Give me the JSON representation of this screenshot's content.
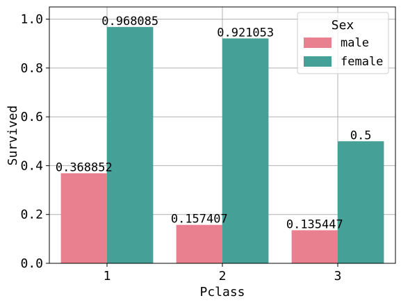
{
  "chart_data": {
    "type": "bar",
    "xlabel": "Pclass",
    "ylabel": "Survived",
    "categories": [
      "1",
      "2",
      "3"
    ],
    "series": [
      {
        "name": "male",
        "color": "#e8808f",
        "values": [
          0.368852,
          0.157407,
          0.135447
        ],
        "labels": [
          "0.368852",
          "0.157407",
          "0.135447"
        ]
      },
      {
        "name": "female",
        "color": "#45a098",
        "values": [
          0.968085,
          0.921053,
          0.5
        ],
        "labels": [
          "0.968085",
          "0.921053",
          "0.5"
        ]
      }
    ],
    "ylim": [
      0,
      1.05
    ],
    "yticks": [
      0.0,
      0.2,
      0.4,
      0.6,
      0.8,
      1.0
    ],
    "ytick_labels": [
      "0.0",
      "0.2",
      "0.4",
      "0.6",
      "0.8",
      "1.0"
    ],
    "grid": true,
    "legend": {
      "title": "Sex",
      "placement": "top-right"
    }
  }
}
